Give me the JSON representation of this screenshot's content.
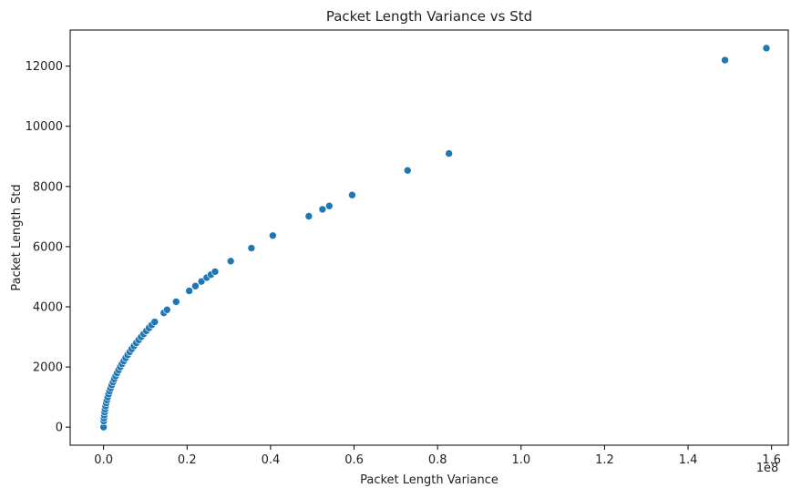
{
  "chart_data": {
    "type": "scatter",
    "title": "Packet Length Variance vs Std",
    "xlabel": "Packet Length Variance",
    "ylabel": "Packet Length Std",
    "x_offset_text": "1e8",
    "xlim": [
      -0.08,
      1.64
    ],
    "ylim": [
      -600,
      13200
    ],
    "xticks": [
      0.0,
      0.2,
      0.4,
      0.6,
      0.8,
      1.0,
      1.2,
      1.4,
      1.6
    ],
    "xtick_labels": [
      "0.0",
      "0.2",
      "0.4",
      "0.6",
      "0.8",
      "1.0",
      "1.2",
      "1.4",
      "1.6"
    ],
    "yticks": [
      0,
      2000,
      4000,
      6000,
      8000,
      10000,
      12000
    ],
    "ytick_labels": [
      "0",
      "2000",
      "4000",
      "6000",
      "8000",
      "10000",
      "12000"
    ],
    "grid": false,
    "marker_color": "#1f77b4",
    "series": [
      {
        "x": [
          0.0,
          0.0004,
          0.0009,
          0.0016,
          0.0025,
          0.0036,
          0.0049,
          0.0064,
          0.0081,
          0.01,
          0.0121,
          0.0144,
          0.0169,
          0.0196,
          0.0225,
          0.0256,
          0.0289,
          0.0324,
          0.0361,
          0.04,
          0.0441,
          0.0484,
          0.0529,
          0.0576,
          0.0625,
          0.0676,
          0.0729,
          0.0784,
          0.0841,
          0.09,
          0.0961,
          0.1024,
          0.1089,
          0.1156,
          0.1225,
          0.1444,
          0.1521,
          0.1738,
          0.2052,
          0.2199,
          0.2344,
          0.2471,
          0.2572,
          0.2671,
          0.3046,
          0.3541,
          0.4054,
          0.4916,
          0.5244,
          0.5406,
          0.5954,
          0.7282,
          0.8273,
          1.4884,
          1.5876
        ],
        "y": [
          0,
          200,
          300,
          400,
          500,
          600,
          700,
          800,
          900,
          1000,
          1100,
          1200,
          1300,
          1400,
          1500,
          1600,
          1700,
          1800,
          1900,
          2000,
          2100,
          2200,
          2300,
          2400,
          2500,
          2600,
          2700,
          2800,
          2900,
          3000,
          3100,
          3200,
          3300,
          3400,
          3500,
          3800,
          3900,
          4169,
          4530,
          4690,
          4842,
          4971,
          5072,
          5168,
          5519,
          5951,
          6367,
          7011,
          7241,
          7353,
          7716,
          8533,
          9096,
          12200,
          12600
        ]
      }
    ]
  }
}
